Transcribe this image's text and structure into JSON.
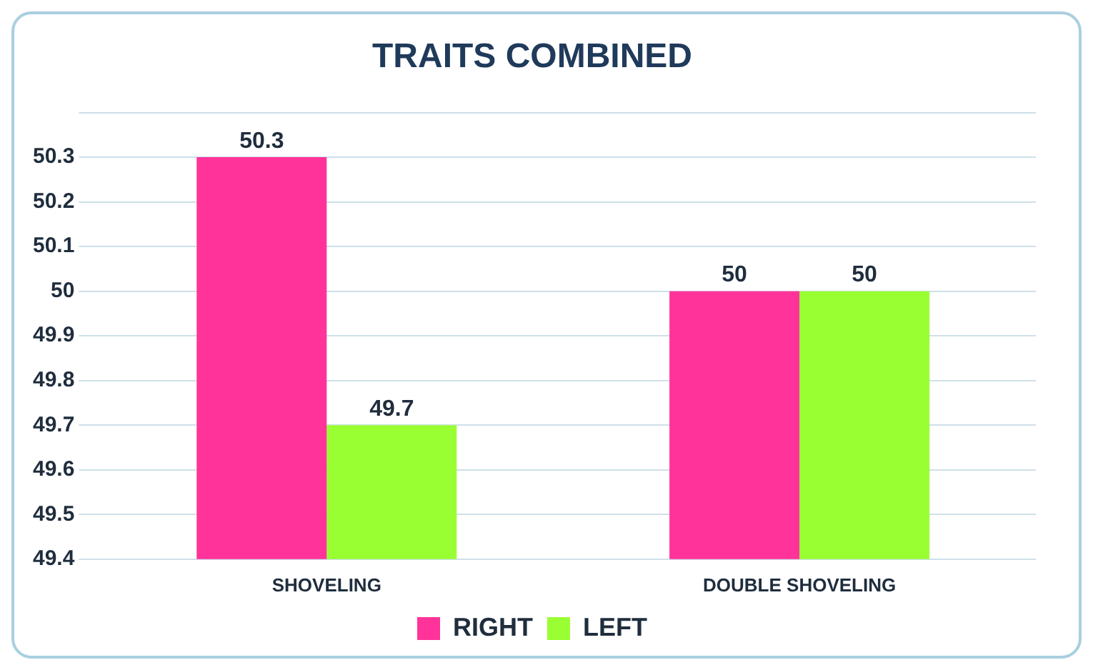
{
  "chart_data": {
    "type": "bar",
    "title": "TRAITS COMBINED",
    "categories": [
      "SHOVELING",
      "DOUBLE SHOVELING"
    ],
    "series": [
      {
        "name": "RIGHT",
        "color": "#ff3399",
        "values": [
          50.3,
          50
        ]
      },
      {
        "name": "LEFT",
        "color": "#99ff33",
        "values": [
          49.7,
          50
        ]
      }
    ],
    "ylim": [
      49.4,
      50.4
    ],
    "yticks": [
      49.4,
      49.5,
      49.6,
      49.7,
      49.8,
      49.9,
      50,
      50.1,
      50.2,
      50.3,
      {
        "value": 50.4,
        "label": null
      }
    ],
    "grid": "y",
    "legend": "bottom",
    "data_labels": true
  }
}
